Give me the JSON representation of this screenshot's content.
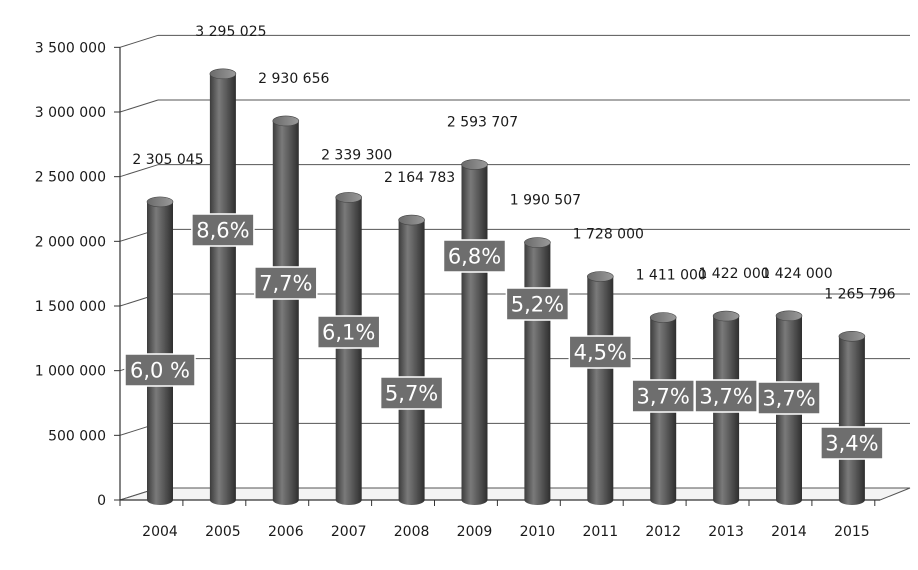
{
  "chart_data": {
    "type": "bar",
    "categories": [
      "2004",
      "2005",
      "2006",
      "2007",
      "2008",
      "2009",
      "2010",
      "2011",
      "2012",
      "2013",
      "2014",
      "2015"
    ],
    "values": [
      2305045,
      3295025,
      2930656,
      2339300,
      2164783,
      2593707,
      1990507,
      1728000,
      1411000,
      1422000,
      1424000,
      1265796
    ],
    "value_labels": [
      "2 305 045",
      "3 295 025",
      "2 930 656",
      "2 339 300",
      "2 164 783",
      "2 593 707",
      "1 990 507",
      "1 728 000",
      "1 411 000",
      "1 422 000",
      "1 424 000",
      "1 265 796"
    ],
    "percent_labels": [
      "6,0 %",
      "8,6%",
      "7,7%",
      "6,1%",
      "5,7%",
      "6,8%",
      "5,2%",
      "4,5%",
      "3,7%",
      "3,7%",
      "3,7%",
      "3,4%"
    ],
    "y_ticks": [
      0,
      500000,
      1000000,
      1500000,
      2000000,
      2500000,
      3000000,
      3500000
    ],
    "y_tick_labels": [
      "0",
      "500 000",
      "1 000 000",
      "1 500 000",
      "2 000 000",
      "2 500 000",
      "3 000 000",
      "3 500 000"
    ],
    "ylim": [
      0,
      3500000
    ],
    "grid": true,
    "style": "3d-cylinder",
    "colors": {
      "bar": "#5f5f5f",
      "label_box": "#6e6e6e",
      "grid": "#555555"
    }
  }
}
